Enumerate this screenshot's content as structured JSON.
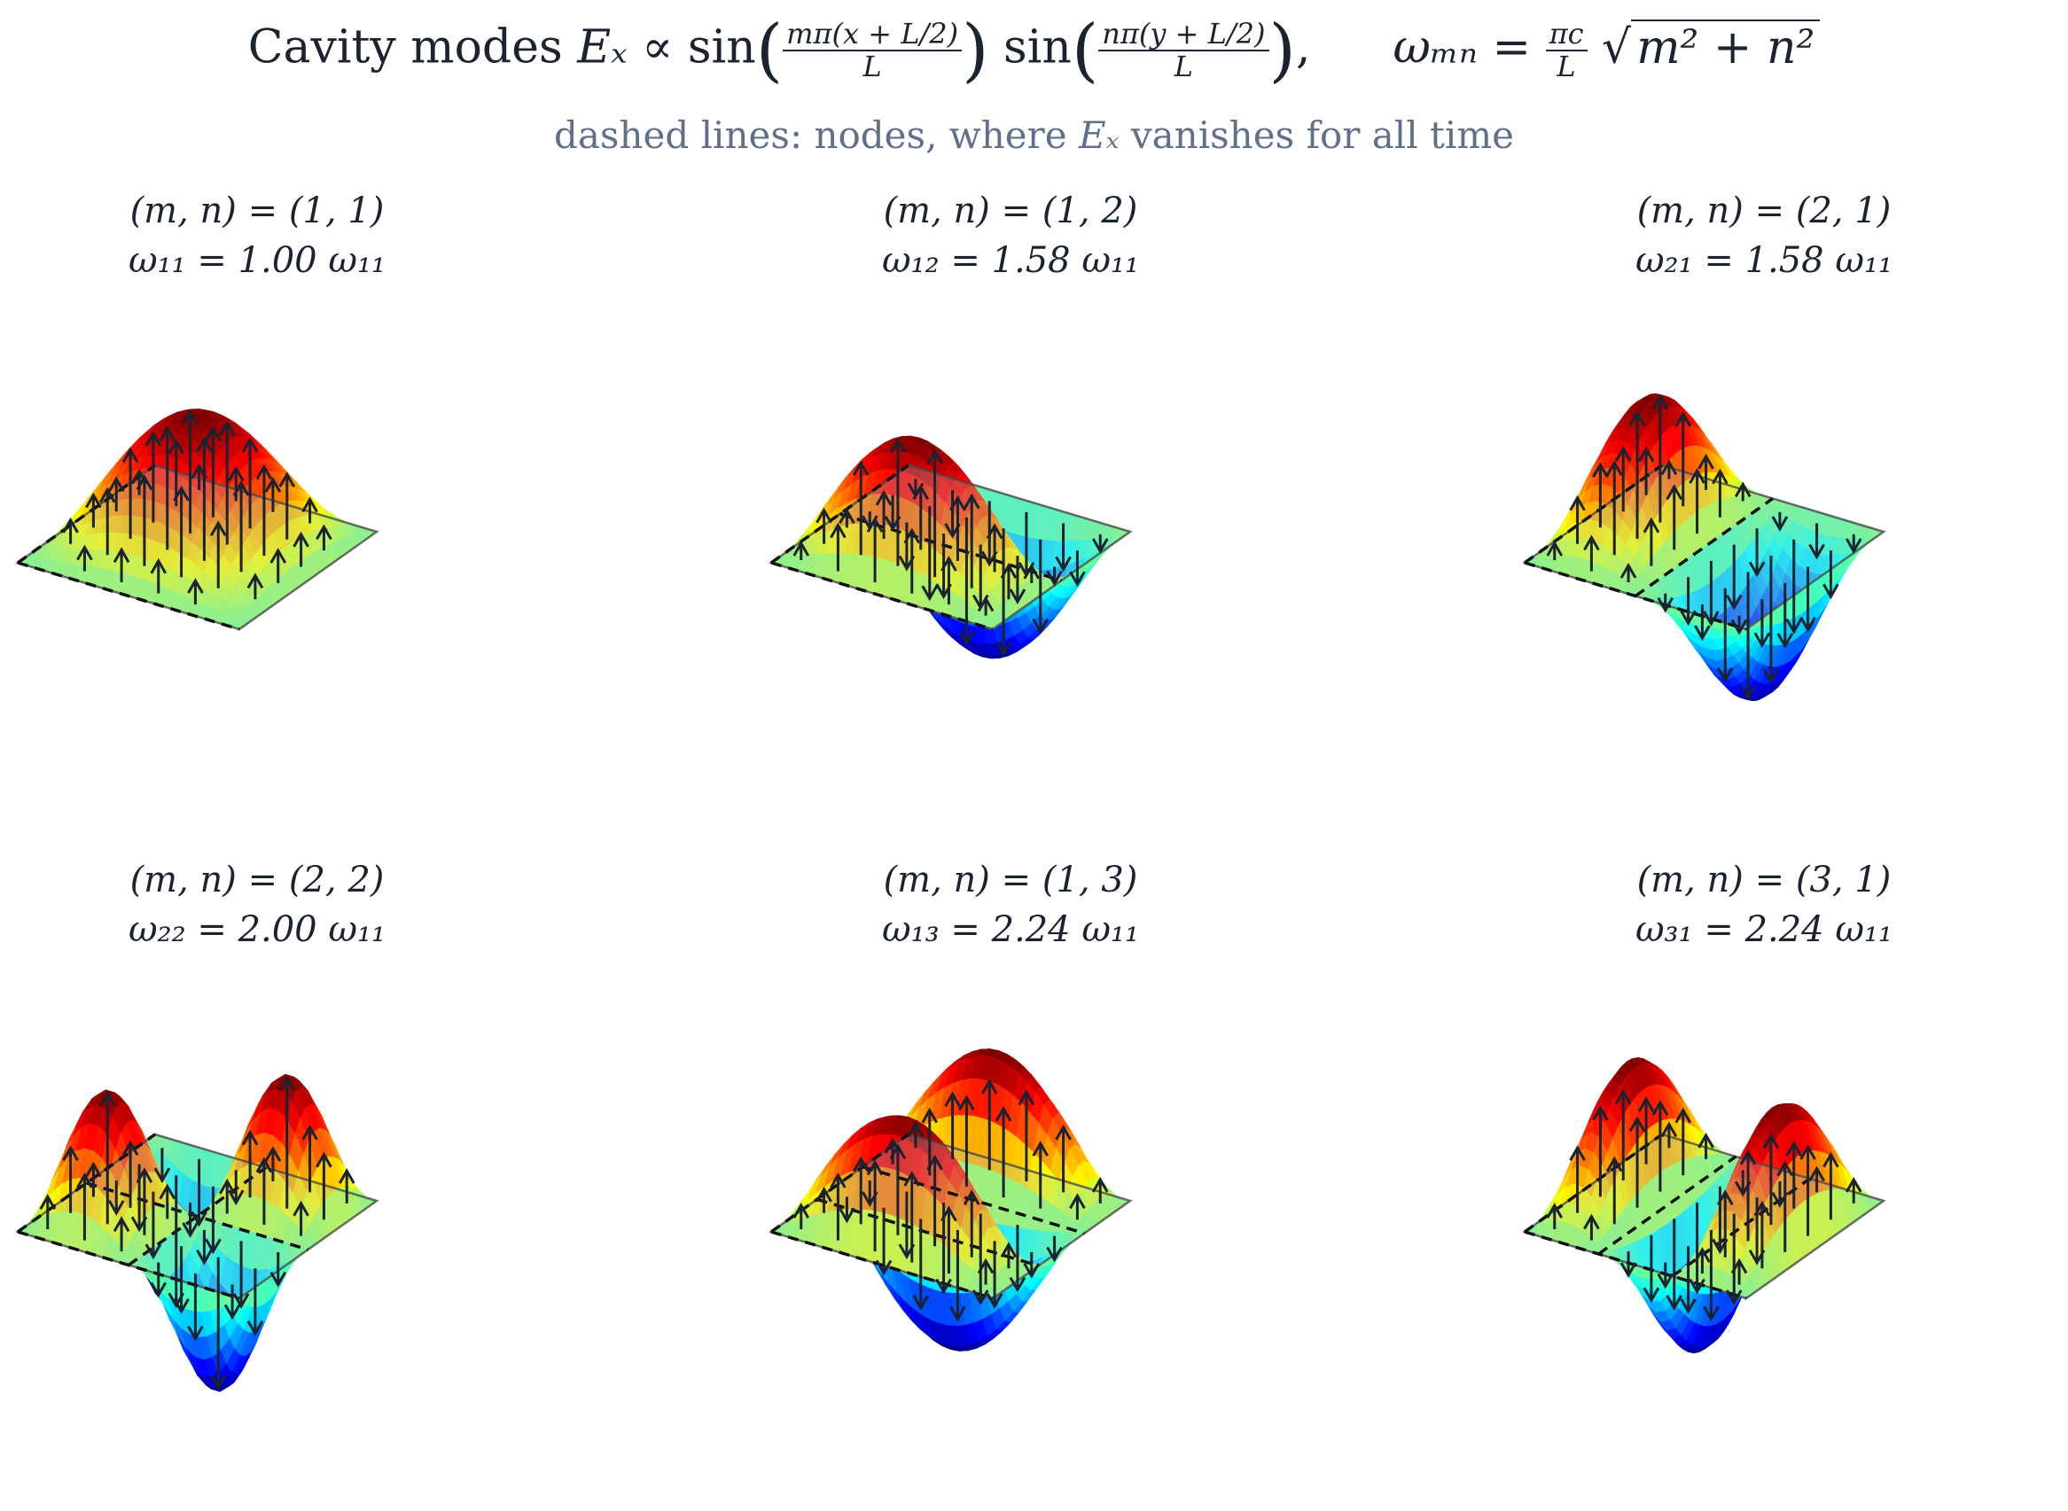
{
  "title": {
    "prefix": "Cavity modes",
    "field": "Eₓ",
    "propto": "∝",
    "sin1": "sin",
    "num1": "mπ(x + L/2)",
    "den1": "L",
    "sin2": "sin",
    "num2": "nπ(y + L/2)",
    "den2": "L",
    "comma": ",",
    "omega": "ωₘₙ",
    "eq": "=",
    "fracnum": "πc",
    "fracden": "L",
    "sqrt": "√",
    "radicand": "m² + n²"
  },
  "subtitle": {
    "prefix": "dashed lines: nodes, where",
    "field": "Eₓ",
    "suffix": "vanishes for all time"
  },
  "colors": {
    "colormap": "jet",
    "node_line": "#111111",
    "arrow": "#1b2230",
    "plane_edge": "#4a4a4a"
  },
  "modes": [
    {
      "mode_label": "(m, n) = (1, 1)",
      "freq_label": "ω₁₁ = 1.00 ω₁₁",
      "m": 1,
      "n": 1,
      "omega_ratio": 1.0
    },
    {
      "mode_label": "(m, n) = (1, 2)",
      "freq_label": "ω₁₂ = 1.58 ω₁₁",
      "m": 1,
      "n": 2,
      "omega_ratio": 1.58
    },
    {
      "mode_label": "(m, n) = (2, 1)",
      "freq_label": "ω₂₁ = 1.58 ω₁₁",
      "m": 2,
      "n": 1,
      "omega_ratio": 1.58
    },
    {
      "mode_label": "(m, n) = (2, 2)",
      "freq_label": "ω₂₂ = 2.00 ω₁₁",
      "m": 2,
      "n": 2,
      "omega_ratio": 2.0
    },
    {
      "mode_label": "(m, n) = (1, 3)",
      "freq_label": "ω₁₃ = 2.24 ω₁₁",
      "m": 1,
      "n": 3,
      "omega_ratio": 2.24
    },
    {
      "mode_label": "(m, n) = (3, 1)",
      "freq_label": "ω₃₁ = 2.24 ω₁₁",
      "m": 3,
      "n": 1,
      "omega_ratio": 2.24
    }
  ]
}
